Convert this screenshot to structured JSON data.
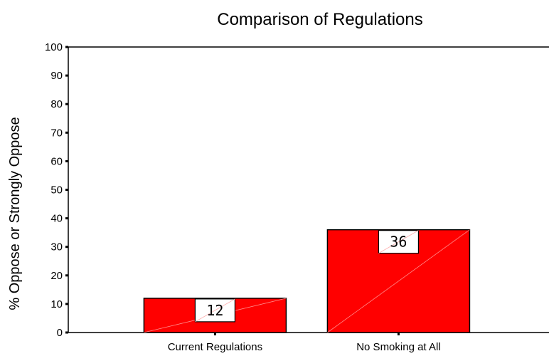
{
  "chart_data": {
    "type": "bar",
    "title": "Comparison of Regulations",
    "xlabel": "",
    "ylabel": "% Oppose or Strongly Oppose",
    "categories": [
      "Current Regulations",
      "No Smoking at All"
    ],
    "values": [
      12,
      36
    ],
    "data_labels": [
      "12",
      "36"
    ],
    "yticks": [
      "0",
      "10",
      "20",
      "30",
      "40",
      "50",
      "60",
      "70",
      "80",
      "90",
      "100"
    ],
    "ylim": [
      0,
      100
    ],
    "grid": false,
    "legend": "none",
    "colors": {
      "bar": "#ff0000",
      "bar_outline": "#000000",
      "axis": "#000000",
      "label_box": "#ffffff"
    }
  }
}
